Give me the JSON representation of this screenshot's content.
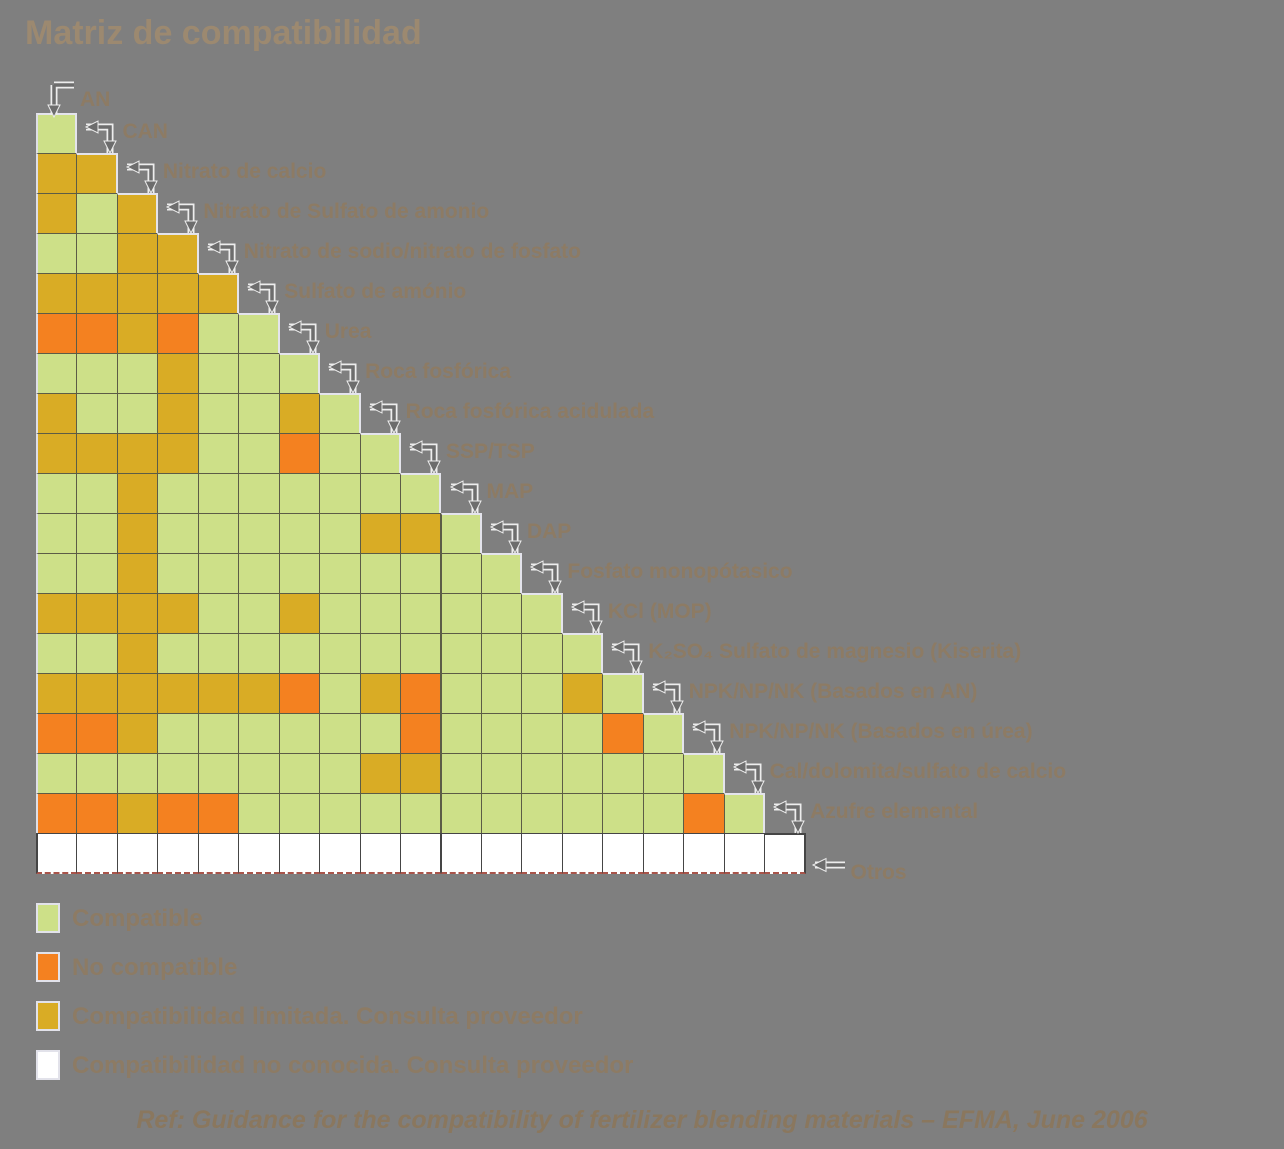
{
  "title": "Matriz de compatibilidad",
  "colors": {
    "green": "#cde088",
    "orange": "#f48120",
    "yellow": "#d9ac25",
    "white": "#ffffff",
    "background": "#7f7f7f",
    "grid_border": "#5c5c46",
    "label_text": "#8d7b64",
    "arrow": "#6d6d6d"
  },
  "matrix": {
    "labels": [
      "AN",
      "CAN",
      "Nitrato de calcio",
      "Nitrato de Sulfato de amonio",
      "Nitrato de sodio/nitrato de fosfato",
      "Sulfato de amónio",
      "Urea",
      "Roca fosfórica",
      "Roca fosfórica acidulada",
      "SSP/TSP",
      "MAP",
      "DAP",
      "Fosfato monopótasico",
      "KCl (MOP)",
      "K₂SO₄ Sulfato de magnesio (Kiserita)",
      "NPK/NP/NK (Basados en AN)",
      "NPK/NP/NK (Basados en úrea)",
      "Cal/dolomita/sulfato de calcio",
      "Azufre elemental",
      "Otros"
    ],
    "cell_codes": {
      "g": "compatible",
      "o": "no_compatible",
      "m": "limitada",
      "w": "no_conocida"
    },
    "rows": [
      "g",
      "mm",
      "mgm",
      "ggmm",
      "mmmmm",
      "oomogg",
      "gggmggg",
      "mggmggmg",
      "mmmmggogg",
      "ggmggggggg",
      "ggmgggggmmg",
      "ggmggggggggg",
      "mmmmggmgggggg",
      "ggmggggggggggg",
      "mmmmmmogmogggmg",
      "oomggggggoggggog",
      "ggggggggmmggggggg",
      "oomoogggggggggggog",
      "wwwwwwwwwwwwwwwwwww"
    ]
  },
  "legend": [
    {
      "color": "green",
      "label": "Compatible"
    },
    {
      "color": "orange",
      "label": "No compatible"
    },
    {
      "color": "yellow",
      "label": "Compatibilidad limitada. Consulta proveedor"
    },
    {
      "color": "white",
      "label": "Compatibilidad no conocida. Consulta proveedor"
    }
  ],
  "footer": "Ref: Guidance for the compatibility of fertilizer blending materials – EFMA, June 2006"
}
